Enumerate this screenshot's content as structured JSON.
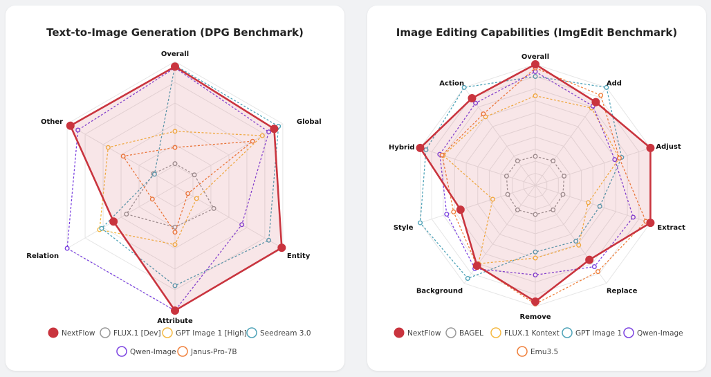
{
  "chart_data": [
    {
      "type": "radar",
      "title": "Text-to-Image Generation (DPG Benchmark)",
      "axes": [
        "Overall",
        "Global",
        "Entity",
        "Attribute",
        "Relation",
        "Other"
      ],
      "range": [
        0,
        1
      ],
      "grid_levels": 6,
      "series": [
        {
          "name": "NextFlow",
          "color": "#c9343e",
          "values": [
            0.96,
            0.92,
            0.99,
            1.0,
            0.57,
            0.97
          ]
        },
        {
          "name": "FLUX.1 [Dev]",
          "color": "#999999",
          "values": [
            0.18,
            0.18,
            0.36,
            0.33,
            0.45,
            0.2
          ]
        },
        {
          "name": "GPT Image 1 [High]",
          "color": "#f5b942",
          "values": [
            0.44,
            0.81,
            0.2,
            0.47,
            0.7,
            0.62
          ]
        },
        {
          "name": "Seedream 3.0",
          "color": "#4fa3b8",
          "values": [
            0.97,
            0.96,
            0.87,
            0.8,
            0.68,
            0.19
          ]
        },
        {
          "name": "Qwen-Image",
          "color": "#7b42e0",
          "values": [
            0.95,
            0.87,
            0.62,
            1.0,
            1.0,
            0.9
          ]
        },
        {
          "name": "Janus-Pro-7B",
          "color": "#ef7f3a",
          "values": [
            0.31,
            0.72,
            0.12,
            0.37,
            0.21,
            0.48
          ]
        }
      ]
    },
    {
      "type": "radar",
      "title": "Image Editing Capabilities (ImgEdit Benchmark)",
      "axes": [
        "Overall",
        "Add",
        "Adjust",
        "Extract",
        "Replace",
        "Remove",
        "Background",
        "Style",
        "Hybrid",
        "Action"
      ],
      "range": [
        0,
        1
      ],
      "grid_levels": 10,
      "series": [
        {
          "name": "NextFlow",
          "color": "#c9343e",
          "values": [
            1.0,
            0.85,
            1.0,
            1.0,
            0.76,
            0.96,
            0.82,
            0.65,
            1.0,
            0.89
          ]
        },
        {
          "name": "BAGEL",
          "color": "#999999",
          "values": [
            0.24,
            0.25,
            0.25,
            0.24,
            0.25,
            0.24,
            0.25,
            0.24,
            0.25,
            0.25
          ]
        },
        {
          "name": "FLUX.1 Kontext",
          "color": "#f5b942",
          "values": [
            0.74,
            0.79,
            0.73,
            0.46,
            0.61,
            0.6,
            0.8,
            0.37,
            0.8,
            0.7
          ]
        },
        {
          "name": "GPT Image 1",
          "color": "#4fa3b8",
          "values": [
            0.9,
            1.0,
            0.75,
            0.56,
            0.57,
            0.55,
            0.95,
            1.0,
            0.95,
            1.0
          ]
        },
        {
          "name": "Qwen-Image",
          "color": "#7b42e0",
          "values": [
            0.94,
            0.81,
            0.69,
            0.85,
            0.83,
            0.74,
            0.85,
            0.77,
            0.83,
            0.84
          ]
        },
        {
          "name": "Emu3.5",
          "color": "#ef7f3a",
          "values": [
            0.97,
            0.92,
            0.73,
            0.96,
            0.88,
            0.98,
            0.82,
            0.71,
            0.81,
            0.73
          ]
        }
      ]
    }
  ]
}
